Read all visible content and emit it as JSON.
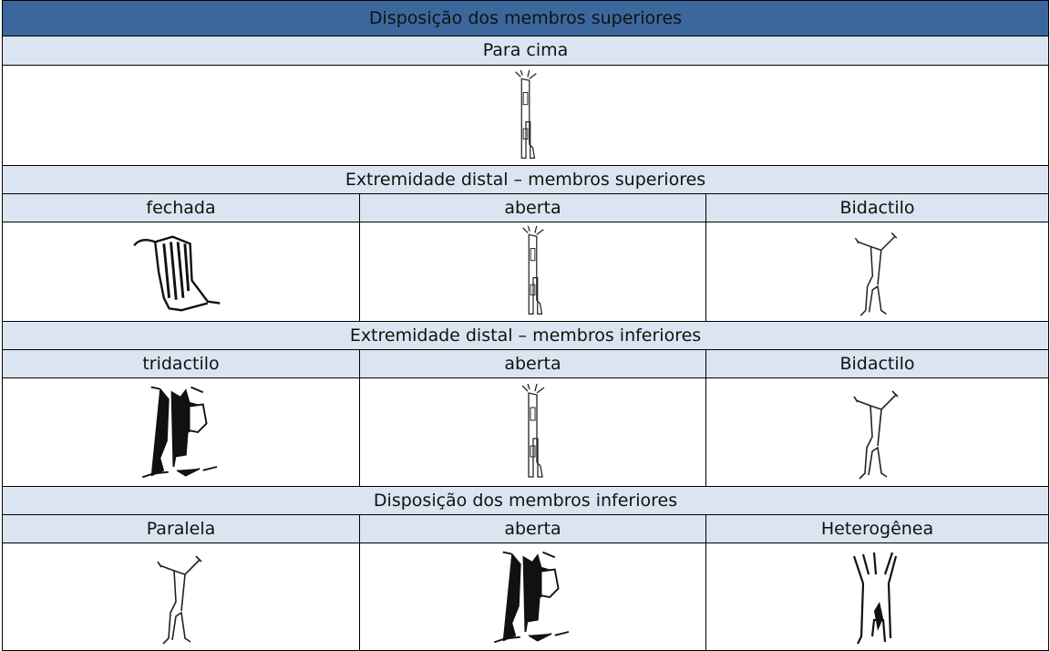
{
  "table": {
    "title": "Disposição dos membros superiores",
    "rows": [
      [
        "Para cima"
      ],
      [
        "Extremidade distal – membros superiores"
      ],
      [
        "fechada",
        "aberta",
        "Bidactilo"
      ],
      [
        "Extremidade distal – membros inferiores"
      ],
      [
        "tridactilo",
        "aberta",
        "Bidactilo"
      ],
      [
        "Disposição dos membros inferiores"
      ],
      [
        "Paralela",
        "aberta",
        "Heterogênea"
      ]
    ]
  }
}
